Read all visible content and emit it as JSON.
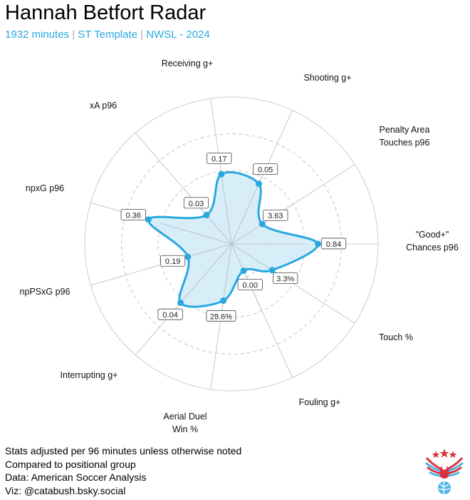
{
  "header": {
    "title": "Hannah Betfort Radar",
    "subtitle_parts": [
      "1932 minutes",
      "ST Template",
      "NWSL - 2024"
    ],
    "separator": "|"
  },
  "chart_data": {
    "type": "radar",
    "title": "Hannah Betfort Radar",
    "rlim": [
      0,
      1
    ],
    "grid_levels": [
      0.25,
      0.5,
      0.75,
      1.0
    ],
    "axes": [
      {
        "label": [
          "Receiving g+"
        ],
        "percentile": 0.48,
        "value_label": "0.17"
      },
      {
        "label": [
          "Shooting g+"
        ],
        "percentile": 0.45,
        "value_label": "0.05"
      },
      {
        "label": [
          "Penalty Area",
          "Touches p96"
        ],
        "percentile": 0.25,
        "value_label": "3.63"
      },
      {
        "label": [
          "\"Good+\"",
          "Chances p96"
        ],
        "percentile": 0.59,
        "value_label": "0.84"
      },
      {
        "label": [
          "Touch %"
        ],
        "percentile": 0.33,
        "value_label": "3.3%"
      },
      {
        "label": [
          "Fouling g+"
        ],
        "percentile": 0.2,
        "value_label": "0.00"
      },
      {
        "label": [
          "Aerial Duel",
          "Win %"
        ],
        "percentile": 0.39,
        "value_label": "28.6%"
      },
      {
        "label": [
          "Interrupting g+"
        ],
        "percentile": 0.53,
        "value_label": "0.04"
      },
      {
        "label": [
          "npPSxG p96"
        ],
        "percentile": 0.31,
        "value_label": "0.19"
      },
      {
        "label": [
          "npxG p96"
        ],
        "percentile": 0.59,
        "value_label": "0.36"
      },
      {
        "label": [
          "xA p96"
        ],
        "percentile": 0.26,
        "value_label": "0.03"
      }
    ],
    "colors": {
      "line": "#29a8e0",
      "fill": "#d3ecf8",
      "grid": "#cccccc"
    }
  },
  "footer": {
    "lines": [
      "Stats adjusted per 96 minutes unless otherwise noted",
      "Compared to positional group",
      "Data: American Soccer Analysis",
      "Viz: @catabush.bsky.social"
    ]
  },
  "logo": {
    "name": "eagle-soccer-logo"
  }
}
